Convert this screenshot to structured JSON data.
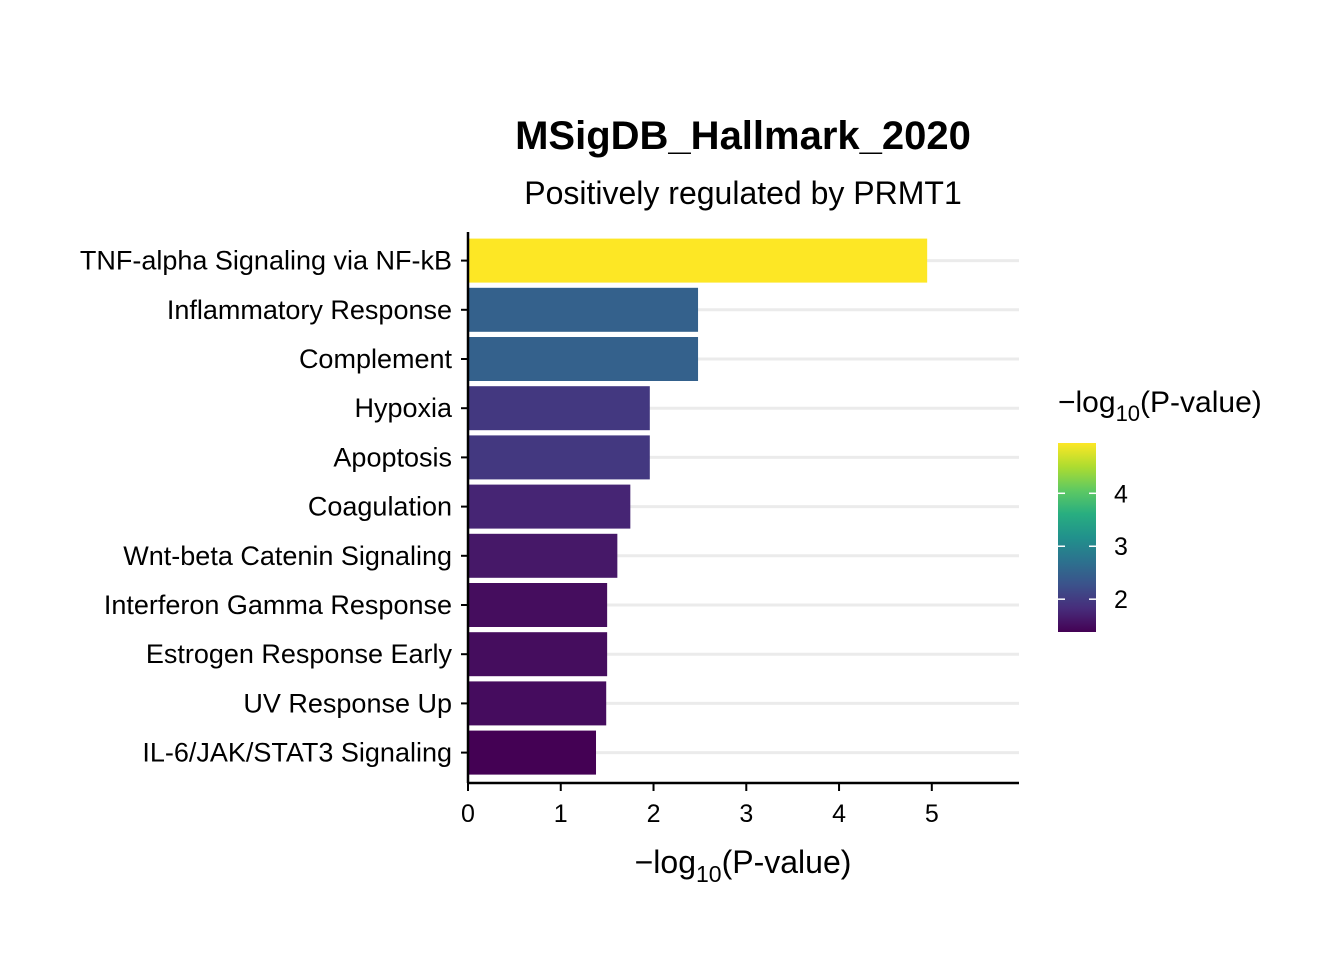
{
  "chart_data": {
    "type": "bar",
    "orientation": "horizontal",
    "title": "MSigDB_Hallmark_2020",
    "subtitle": "Positively regulated by PRMT1",
    "xlabel_prefix": "−log",
    "xlabel_sub": "10",
    "xlabel_suffix": "(P-value)",
    "categories": [
      "TNF-alpha Signaling via NF-kB",
      "Inflammatory Response",
      "Complement",
      "Hypoxia",
      "Apoptosis",
      "Coagulation",
      "Wnt-beta Catenin Signaling",
      "Interferon Gamma Response",
      "Estrogen Response Early",
      "UV Response Up",
      "IL-6/JAK/STAT3 Signaling"
    ],
    "values": [
      4.95,
      2.48,
      2.48,
      1.96,
      1.96,
      1.75,
      1.61,
      1.5,
      1.5,
      1.49,
      1.38
    ],
    "xlim": [
      0,
      5.94
    ],
    "xticks": [
      "0",
      "1",
      "2",
      "3",
      "4",
      "5"
    ],
    "grid": "horizontal",
    "legend": {
      "title_prefix": "−log",
      "title_sub": "10",
      "title_suffix": "(P-value)",
      "placement": "right",
      "colormap": "viridis",
      "range": [
        1.38,
        4.95
      ],
      "ticks": [
        "2",
        "3",
        "4"
      ]
    }
  }
}
